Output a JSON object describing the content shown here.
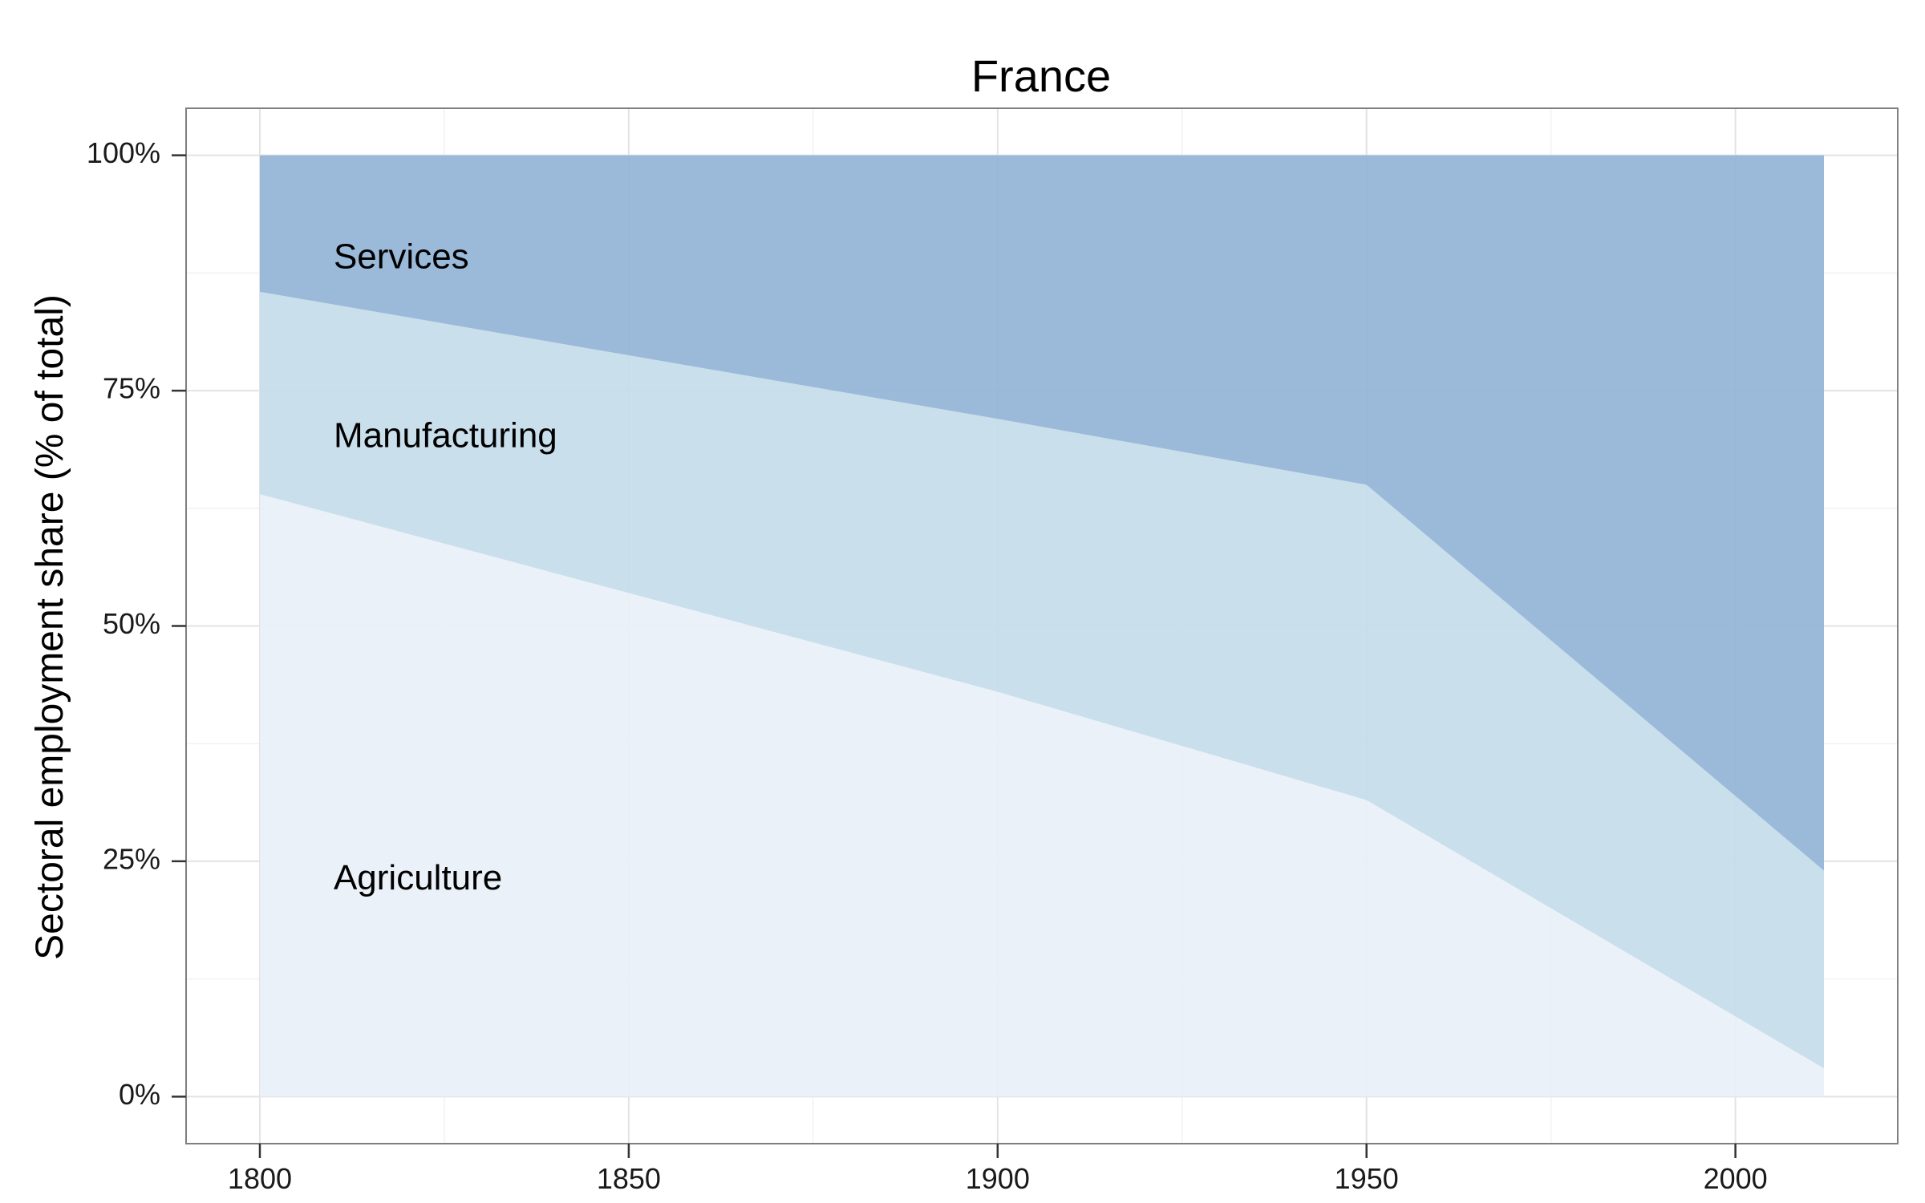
{
  "chart_data": {
    "type": "area",
    "stacked": true,
    "title": "France",
    "ylabel": "Sectoral employment share (% of total)",
    "xlabel": "",
    "xlim": [
      1790,
      2022
    ],
    "ylim": [
      -5,
      105
    ],
    "x_ticks": [
      1800,
      1850,
      1900,
      1950,
      2000
    ],
    "x_tick_labels": [
      "1800",
      "1850",
      "1900",
      "1950",
      "2000"
    ],
    "y_ticks": [
      0,
      25,
      50,
      75,
      100
    ],
    "y_tick_labels": [
      "0%",
      "25%",
      "50%",
      "75%",
      "100%"
    ],
    "grid": true,
    "legend": "none",
    "x": [
      1800,
      1900,
      1950,
      2012
    ],
    "series": [
      {
        "name": "Agriculture",
        "values": [
          64,
          43,
          31.5,
          3
        ],
        "color": "#e9f0f8"
      },
      {
        "name": "Manufacturing",
        "values": [
          21.5,
          29,
          33.5,
          21
        ],
        "color": "#c6dcea"
      },
      {
        "name": "Services",
        "values": [
          14.5,
          28,
          35,
          76
        ],
        "color": "#93b4d7"
      }
    ],
    "annotations": [
      {
        "text": "Services",
        "x": 1810,
        "y": 89
      },
      {
        "text": "Manufacturing",
        "x": 1810,
        "y": 70
      },
      {
        "text": "Agriculture",
        "x": 1810,
        "y": 23
      }
    ]
  }
}
